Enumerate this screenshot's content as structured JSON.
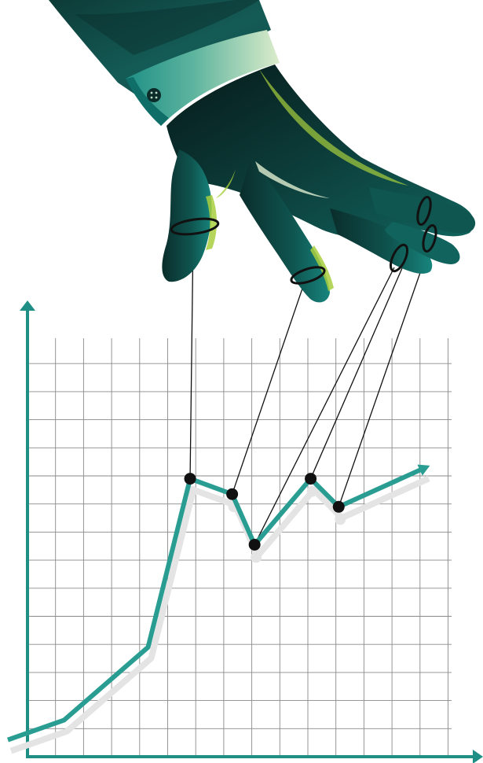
{
  "image": {
    "subject": "puppeteer-hand-controlling-chart",
    "colors": {
      "background": "#ffffff",
      "grid": "#8a8a8a",
      "axis": "#1f8f86",
      "line": "#2a9d93",
      "shadow": "#e4e4e4",
      "joint": "#111111",
      "string": "#111111",
      "sleeve_dark": "#0d3b37",
      "sleeve_mid": "#145b56",
      "cuff": "#bcdcc7",
      "hand_dark": "#071f1e",
      "hand_mid": "#0e4f4a",
      "hand_light": "#138a82",
      "hand_highlight": "#a8cf3d"
    }
  },
  "chart_data": {
    "type": "line",
    "grid": true,
    "series": [
      {
        "points": [
          [
            0,
            0.6
          ],
          [
            2,
            1.3
          ],
          [
            5,
            3.9
          ],
          [
            6.5,
            9.9
          ],
          [
            8,
            9.35
          ],
          [
            8.8,
            7.55
          ],
          [
            10.8,
            9.9
          ],
          [
            11.8,
            8.9
          ],
          [
            14.9,
            10.3
          ]
        ],
        "arrow_end": true
      }
    ],
    "marionette_joints": [
      3,
      4,
      5,
      6,
      7
    ]
  }
}
